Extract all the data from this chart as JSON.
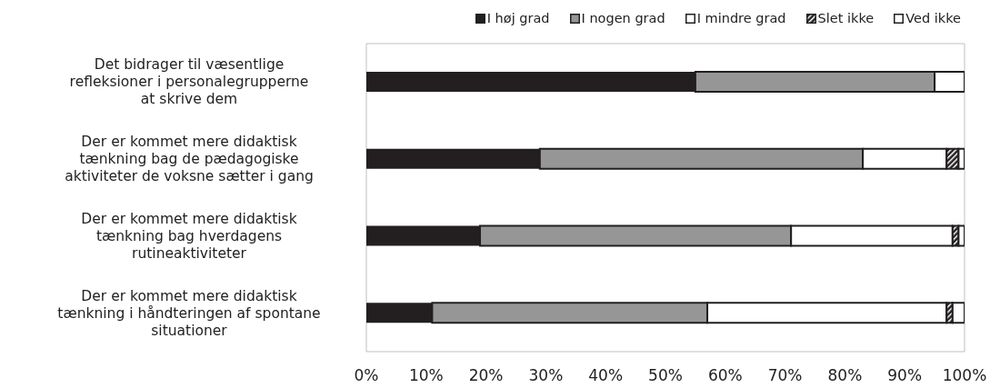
{
  "chart_data": {
    "type": "bar",
    "orientation": "horizontal",
    "stacked": true,
    "legend": "top right",
    "grid": false,
    "categories": [
      "Det bidrager til væsentlige refleksioner i personalegrupperne at skrive dem",
      "Der er kommet mere didaktisk tænkning bag de pædagogiske aktiviteter de voksne sætter i gang",
      "Der er kommet mere didaktisk tænkning bag hverdagens rutineaktiviteter",
      "Der er kommet mere didaktisk tænkning i håndteringen af spontane situationer"
    ],
    "series": [
      {
        "name": "I høj grad",
        "color": "#231f20",
        "values": [
          55,
          29,
          19,
          11
        ]
      },
      {
        "name": "I nogen grad",
        "color": "#969696",
        "values": [
          40,
          54,
          52,
          46
        ]
      },
      {
        "name": "I mindre grad",
        "color": "#ffffff",
        "values": [
          5,
          14,
          27,
          40
        ]
      },
      {
        "name": "Slet ikke",
        "color": "#231f20",
        "values": [
          0,
          2,
          1,
          1
        ]
      },
      {
        "name": "Ved ikke",
        "color": "#ffffff",
        "values": [
          0,
          1,
          1,
          2
        ]
      }
    ],
    "xlim": [
      0,
      100
    ],
    "xticks": [
      {
        "value": 0,
        "label": "0%"
      },
      {
        "value": 10,
        "label": "10%"
      },
      {
        "value": 20,
        "label": "20%"
      },
      {
        "value": 30,
        "label": "30%"
      },
      {
        "value": 40,
        "label": "40%"
      },
      {
        "value": 50,
        "label": "50%"
      },
      {
        "value": 60,
        "label": "60%"
      },
      {
        "value": 70,
        "label": "70%"
      },
      {
        "value": 80,
        "label": "80%"
      },
      {
        "value": 90,
        "label": "90%"
      },
      {
        "value": 100,
        "label": "100%"
      }
    ]
  }
}
